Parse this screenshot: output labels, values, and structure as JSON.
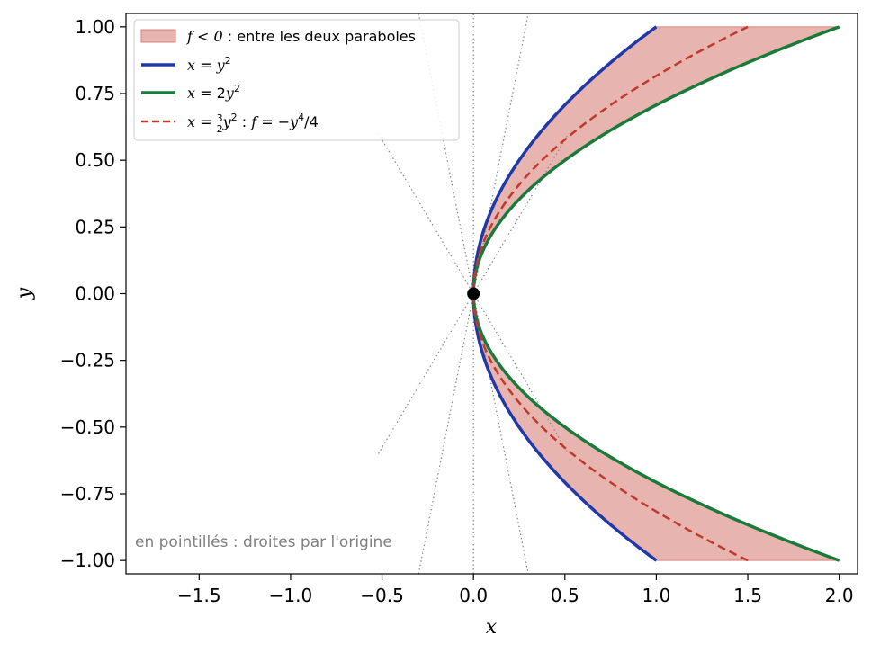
{
  "chart_data": {
    "type": "line",
    "xlabel": "x",
    "ylabel": "y",
    "xlim": [
      -1.9,
      2.1
    ],
    "ylim": [
      -1.05,
      1.05
    ],
    "xticks": [
      -1.5,
      -1.0,
      -0.5,
      0.0,
      0.5,
      1.0,
      1.5,
      2.0
    ],
    "yticks": [
      -1.0,
      -0.75,
      -0.5,
      -0.25,
      0.0,
      0.25,
      0.5,
      0.75,
      1.0
    ],
    "xtick_labels": [
      "−1.5",
      "−1.0",
      "−0.5",
      "0.0",
      "0.5",
      "1.0",
      "1.5",
      "2.0"
    ],
    "ytick_labels": [
      "−1.00",
      "−0.75",
      "−0.50",
      "−0.25",
      "0.00",
      "0.25",
      "0.50",
      "0.75",
      "1.00"
    ],
    "grid": false,
    "legend_position": "top-left",
    "fill_region": {
      "label_math": "f < 0",
      "label_text": " : entre les deux paraboles",
      "between": [
        "x = y^2",
        "x = 2y^2"
      ],
      "y_range": [
        -1,
        1
      ],
      "color": "#e8b4b0",
      "edge_color": "#d9847c"
    },
    "series": [
      {
        "name": "x = y²",
        "equation": "x = y^2",
        "coef": 1.0,
        "color": "#2139a5",
        "style": "solid"
      },
      {
        "name": "x = 2y²",
        "equation": "x = 2y^2",
        "coef": 2.0,
        "color": "#1a7a3a",
        "style": "solid"
      },
      {
        "name": "x = 3/2 y² : f = −y⁴/4",
        "equation": "x = (3/2) y^2",
        "coef": 1.5,
        "color": "#c0392b",
        "style": "dashed"
      }
    ],
    "origin_lines": {
      "color": "#888888",
      "style": "dotted",
      "segments": [
        {
          "x": [
            0,
            0
          ],
          "y": [
            -1.05,
            1.05
          ]
        },
        {
          "x": [
            -0.3,
            0.3
          ],
          "y": [
            1.05,
            -1.05
          ]
        },
        {
          "x": [
            -0.3,
            0.3
          ],
          "y": [
            -1.05,
            1.05
          ]
        },
        {
          "x": [
            -0.52,
            0.52
          ],
          "y": [
            0.6,
            -0.6
          ]
        },
        {
          "x": [
            -0.52,
            0.52
          ],
          "y": [
            -0.6,
            0.6
          ]
        }
      ]
    },
    "point": {
      "x": 0,
      "y": 0,
      "color": "#000000"
    },
    "annotation": "en pointillés : droites par l'origine"
  }
}
